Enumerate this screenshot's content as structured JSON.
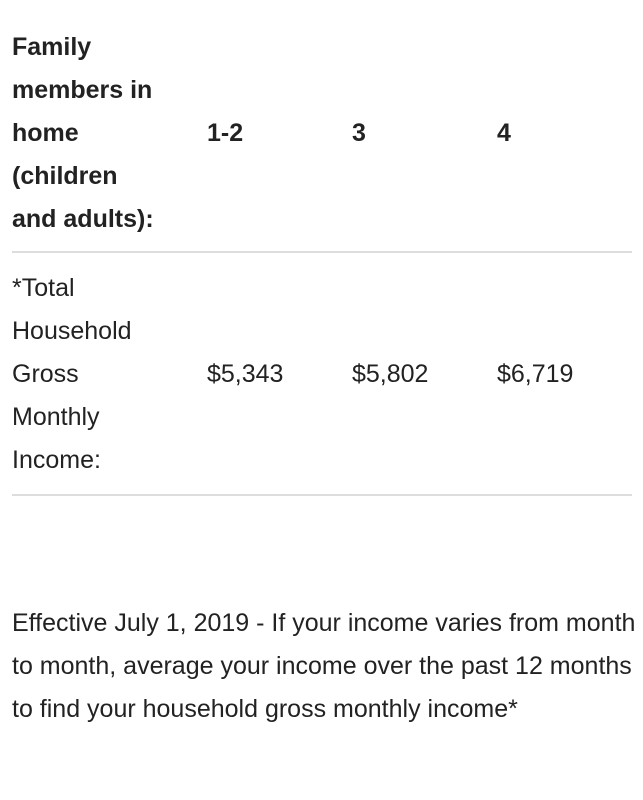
{
  "table": {
    "header": [
      "Family members in home (children and adults):",
      "1-2",
      "3",
      "4"
    ],
    "row": [
      "*Total Household Gross Monthly Income:",
      "$5,343",
      "$5,802",
      "$6,719"
    ]
  },
  "note": "Effective July 1, 2019 - If your income varies from month to month, average your income over the past 12 months to find your household gross monthly income*"
}
